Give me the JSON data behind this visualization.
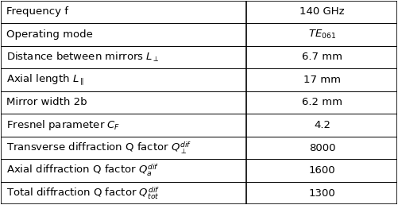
{
  "rows": [
    [
      "Frequency f",
      "140 GHz"
    ],
    [
      "Operating mode",
      "$\\mathit{TE}_{061}$"
    ],
    [
      "Distance between mirrors $L_{\\perp}$",
      "6.7 mm"
    ],
    [
      "Axial length $L_{\\parallel}$",
      "17 mm"
    ],
    [
      "Mirror width 2b",
      "6.2 mm"
    ],
    [
      "Fresnel parameter $C_{F}$",
      "4.2"
    ],
    [
      "Transverse diffraction Q factor $Q_{\\perp}^{dif}$",
      "8000"
    ],
    [
      "Axial diffraction Q factor $Q_{a}^{dif}$",
      "1600"
    ],
    [
      "Total diffraction Q factor $Q_{tot}^{dif}$",
      "1300"
    ]
  ],
  "col_split": 0.62,
  "bg_color": "#ffffff",
  "border_color": "#000000",
  "text_color": "#000000",
  "font_size": 9.5,
  "row_font_size": 9.5
}
